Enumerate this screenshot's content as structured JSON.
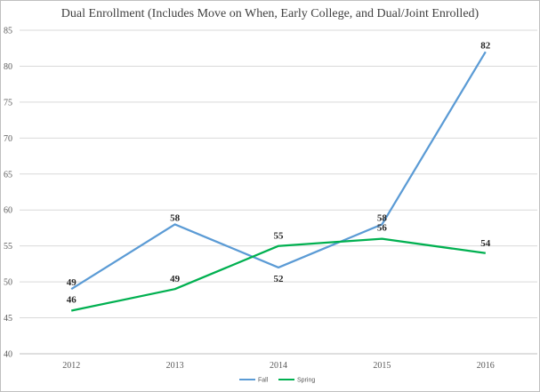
{
  "chart_data": {
    "type": "line",
    "title": "Dual Enrollment  (Includes Move on When, Early College, and Dual/Joint Enrolled)",
    "xlabel": "",
    "ylabel": "",
    "categories": [
      "2012",
      "2013",
      "2014",
      "2015",
      "2016"
    ],
    "ylim": [
      40,
      85
    ],
    "yticks": [
      "40",
      "45",
      "50",
      "55",
      "60",
      "65",
      "70",
      "75",
      "80",
      "85"
    ],
    "grid": true,
    "legend_position": "bottom",
    "series": [
      {
        "name": "Fall",
        "color": "#5b9bd5",
        "values": [
          49,
          58,
          52,
          58,
          82
        ]
      },
      {
        "name": "Spring",
        "color": "#00b050",
        "values": [
          46,
          49,
          55,
          56,
          54
        ]
      }
    ]
  }
}
